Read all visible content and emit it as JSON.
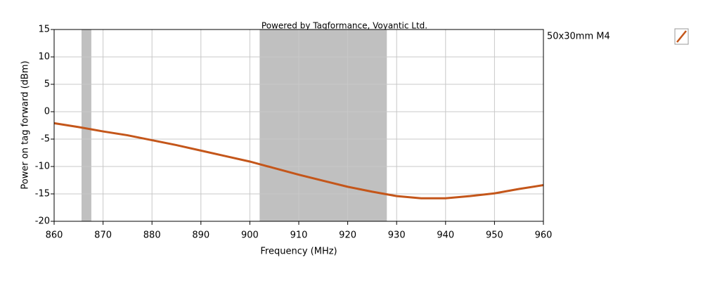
{
  "chart_data": {
    "type": "line",
    "title": "Powered by Tagformance, Voyantic Ltd.",
    "x_label": "Frequency (MHz)",
    "y_label": "Power on tag forward (dBm)",
    "x": [
      860,
      865,
      870,
      875,
      880,
      885,
      890,
      895,
      900,
      905,
      910,
      915,
      920,
      925,
      930,
      935,
      940,
      945,
      950,
      955,
      960
    ],
    "series": [
      {
        "name": "50x30mm M4",
        "color": "#c4561a",
        "values": [
          -2.1,
          -2.8,
          -3.6,
          -4.3,
          -5.2,
          -6.1,
          -7.1,
          -8.1,
          -9.1,
          -10.3,
          -11.5,
          -12.6,
          -13.7,
          -14.6,
          -15.4,
          -15.8,
          -15.8,
          -15.4,
          -14.9,
          -14.1,
          -13.4
        ]
      }
    ],
    "bands": [
      [
        865.6,
        867.6
      ],
      [
        902,
        928
      ]
    ],
    "band_color": "#c0c0c0",
    "xlim": [
      860,
      960
    ],
    "ylim": [
      -20,
      15
    ],
    "xticks": [
      860,
      870,
      880,
      890,
      900,
      910,
      920,
      930,
      940,
      950,
      960
    ],
    "yticks": [
      -20,
      -15,
      -10,
      -5,
      0,
      5,
      10,
      15
    ],
    "grid": true,
    "legend_position": "right"
  }
}
